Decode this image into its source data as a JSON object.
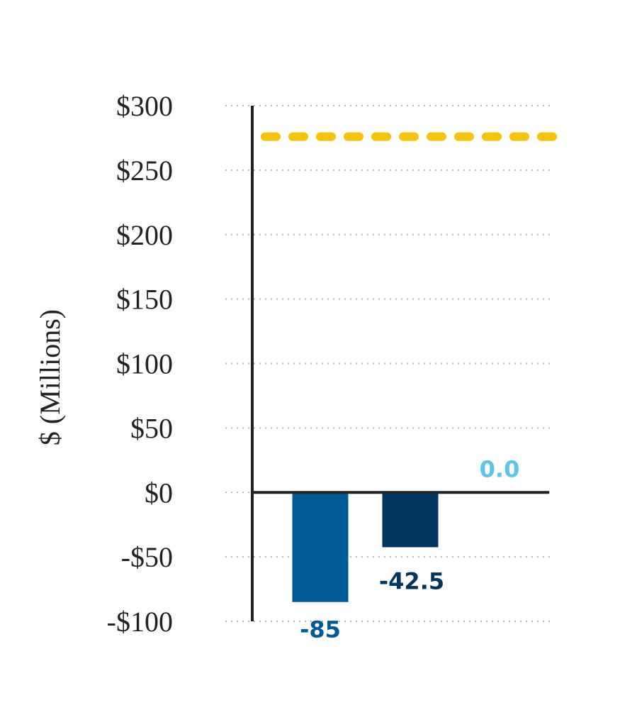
{
  "chart_data": {
    "type": "bar",
    "ylabel": "$ (Millions)",
    "ylim": [
      -100,
      300
    ],
    "yticks": [
      300,
      250,
      200,
      150,
      100,
      50,
      0,
      -50,
      -100
    ],
    "ytick_labels": [
      "$300",
      "$250",
      "$200",
      "$150",
      "$100",
      "$50",
      "$0",
      "-$50",
      "-$100"
    ],
    "grid": true,
    "bars": [
      {
        "value": -85,
        "label": "-85",
        "color": "#005a96"
      },
      {
        "value": -42.5,
        "label": "-42.5",
        "color": "#003560"
      },
      {
        "value": 0,
        "label": "0.0",
        "color": "#5bc4ee"
      }
    ],
    "reference_line": {
      "value": 276,
      "style": "dashed",
      "color": "#f7c309"
    },
    "colors": {
      "axis": "#222222",
      "grid": "#b8b8b8"
    }
  }
}
